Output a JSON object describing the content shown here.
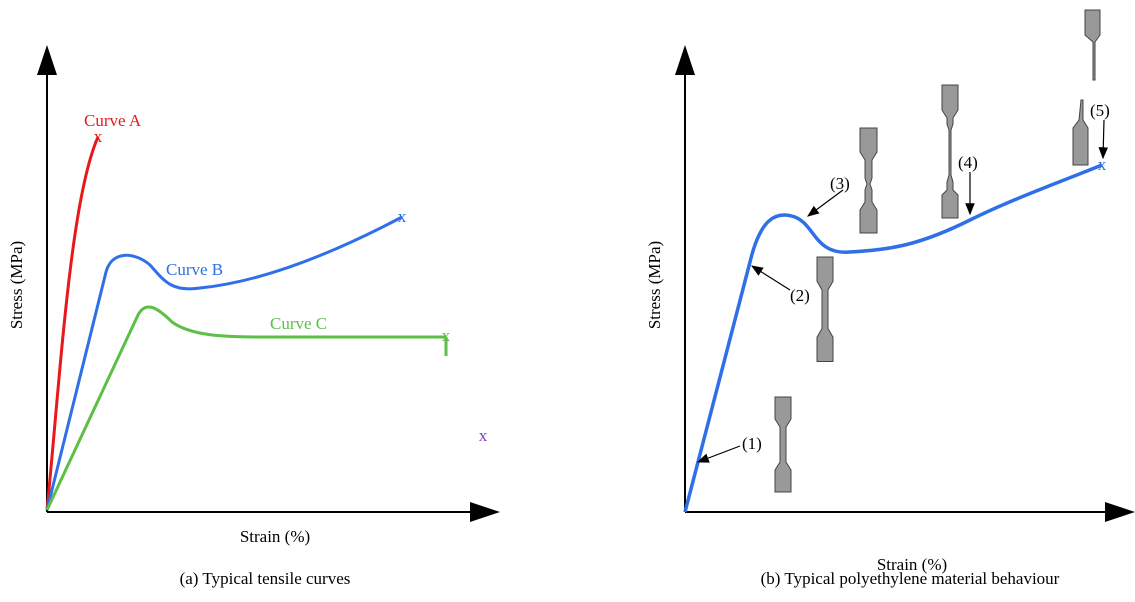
{
  "panels": [
    {
      "y_axis_label": "Stress (MPa)",
      "x_axis_label": "Strain (%)",
      "caption": "(a) Typical tensile curves",
      "curves": [
        {
          "label": "Curve A"
        },
        {
          "label": "Curve B"
        },
        {
          "label": "Curve C"
        }
      ],
      "markers": [
        "x",
        "x",
        "x",
        "x"
      ]
    },
    {
      "y_axis_label": "Stress (MPa)",
      "x_axis_label": "Strain (%)",
      "caption": "(b) Typical polyethylene material behaviour",
      "annotations": [
        "(1)",
        "(2)",
        "(3)",
        "(4)",
        "(5)"
      ],
      "markers": [
        "x"
      ]
    }
  ]
}
